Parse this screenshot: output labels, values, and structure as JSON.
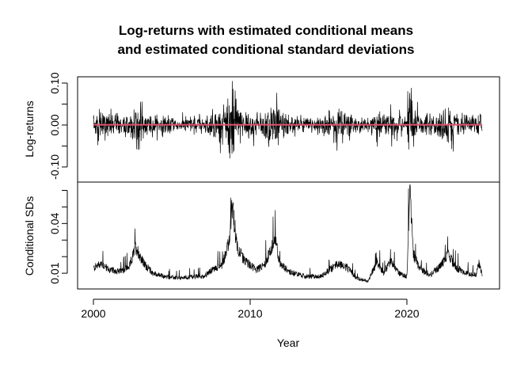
{
  "chart_data": {
    "type": "line",
    "title": [
      "Log-returns with estimated conditional means",
      "and estimated conditional standard deviations"
    ],
    "xlabel": "Year",
    "xlim": [
      1999,
      2026
    ],
    "x_ticks": [
      2000,
      2010,
      2020
    ],
    "x_tick_labels": [
      "2000",
      "2010",
      "2020"
    ],
    "grid": false,
    "panels": [
      {
        "ylabel": "Log-returns",
        "ylim": [
          -0.136,
          0.115
        ],
        "y_ticks": [
          -0.1,
          -0.05,
          0.0,
          0.05,
          0.1
        ],
        "y_tick_labels": [
          "-0.10",
          "",
          "0.00",
          "",
          "0.10"
        ],
        "series": [
          {
            "role": "log-returns",
            "color": "#000000"
          },
          {
            "role": "conditional mean",
            "color": "#DF536B",
            "approx_value": 0.0005
          }
        ]
      },
      {
        "ylabel": "Conditional SDs",
        "ylim": [
          0.0005,
          0.065
        ],
        "y_ticks": [
          0.01,
          0.02,
          0.03,
          0.04,
          0.05,
          0.06
        ],
        "y_tick_labels": [
          "0.01",
          "",
          "",
          "0.04",
          "",
          ""
        ],
        "series": [
          {
            "role": "conditional SD",
            "color": "#000000",
            "x": [
              2000.0,
              2000.5,
              2001.0,
              2001.7,
              2002.3,
              2002.7,
              2003.2,
              2003.8,
              2004.5,
              2005.5,
              2006.4,
              2007.0,
              2007.6,
              2008.2,
              2008.7,
              2008.85,
              2009.2,
              2009.6,
              2010.4,
              2010.9,
              2011.6,
              2011.9,
              2012.5,
              2013.5,
              2014.5,
              2015.6,
              2016.1,
              2016.8,
              2017.5,
              2018.1,
              2018.5,
              2018.95,
              2019.5,
              2020.0,
              2020.2,
              2020.4,
              2020.8,
              2021.5,
              2022.2,
              2022.6,
              2023.2,
              2023.8,
              2024.4,
              2024.6,
              2024.8
            ],
            "values": [
              0.013,
              0.016,
              0.012,
              0.011,
              0.014,
              0.026,
              0.016,
              0.01,
              0.008,
              0.007,
              0.008,
              0.008,
              0.012,
              0.015,
              0.03,
              0.05,
              0.025,
              0.018,
              0.012,
              0.015,
              0.03,
              0.016,
              0.011,
              0.008,
              0.008,
              0.016,
              0.014,
              0.007,
              0.005,
              0.017,
              0.01,
              0.017,
              0.01,
              0.008,
              0.063,
              0.022,
              0.013,
              0.009,
              0.015,
              0.021,
              0.013,
              0.01,
              0.009,
              0.016,
              0.009
            ]
          }
        ]
      }
    ]
  }
}
